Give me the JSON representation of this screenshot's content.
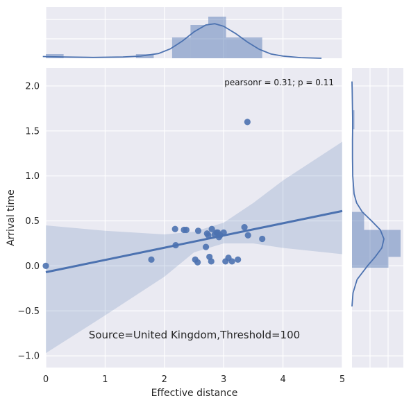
{
  "chart_data": {
    "type": "scatter",
    "xlabel": "Effective distance",
    "ylabel": "Arrival time",
    "xlim": [
      0,
      5
    ],
    "ylim": [
      -1.13,
      2.2
    ],
    "xticks": [
      "0",
      "1",
      "2",
      "3",
      "4",
      "5"
    ],
    "yticks": [
      "−1.0",
      "−0.5",
      "0.0",
      "0.5",
      "1.0",
      "1.5",
      "2.0"
    ],
    "ytick_values": [
      -1.0,
      -0.5,
      0.0,
      0.5,
      1.0,
      1.5,
      2.0
    ],
    "grid": true,
    "annotation": "pearsonr = 0.31; p = 0.11",
    "source_text": "Source=United Kingdom,Threshold=100",
    "colors": {
      "points": "#4c72b0",
      "background": "#eaeaf2",
      "grid": "#ffffff",
      "band": "#4c72b0"
    },
    "points": [
      {
        "x": 0.0,
        "y": 0.0
      },
      {
        "x": 1.78,
        "y": 0.07
      },
      {
        "x": 2.18,
        "y": 0.41
      },
      {
        "x": 2.19,
        "y": 0.23
      },
      {
        "x": 2.33,
        "y": 0.4
      },
      {
        "x": 2.37,
        "y": 0.4
      },
      {
        "x": 2.52,
        "y": 0.07
      },
      {
        "x": 2.56,
        "y": 0.04
      },
      {
        "x": 2.57,
        "y": 0.39
      },
      {
        "x": 2.7,
        "y": 0.21
      },
      {
        "x": 2.72,
        "y": 0.36
      },
      {
        "x": 2.74,
        "y": 0.34
      },
      {
        "x": 2.76,
        "y": 0.1
      },
      {
        "x": 2.79,
        "y": 0.05
      },
      {
        "x": 2.8,
        "y": 0.41
      },
      {
        "x": 2.85,
        "y": 0.35
      },
      {
        "x": 2.88,
        "y": 0.37
      },
      {
        "x": 2.9,
        "y": 0.37
      },
      {
        "x": 2.92,
        "y": 0.32
      },
      {
        "x": 2.94,
        "y": 0.34
      },
      {
        "x": 3.0,
        "y": 0.37
      },
      {
        "x": 3.03,
        "y": 0.05
      },
      {
        "x": 3.08,
        "y": 0.09
      },
      {
        "x": 3.14,
        "y": 0.05
      },
      {
        "x": 3.24,
        "y": 0.07
      },
      {
        "x": 3.35,
        "y": 0.43
      },
      {
        "x": 3.4,
        "y": 1.6
      },
      {
        "x": 3.41,
        "y": 0.34
      },
      {
        "x": 3.65,
        "y": 0.3
      }
    ],
    "regression": {
      "x": [
        0,
        5
      ],
      "y": [
        -0.07,
        0.61
      ]
    },
    "confidence_band": {
      "x": [
        0.0,
        1.0,
        2.0,
        2.5,
        3.0,
        3.5,
        4.0,
        5.0
      ],
      "upper": [
        0.45,
        0.39,
        0.35,
        0.38,
        0.48,
        0.7,
        0.95,
        1.38
      ],
      "lower": [
        -0.97,
        -0.55,
        -0.12,
        0.15,
        0.25,
        0.25,
        0.2,
        0.13
      ]
    },
    "marginal_x": {
      "bins": [
        [
          0.0,
          0.3
        ],
        [
          1.52,
          1.82
        ],
        [
          2.13,
          2.44
        ],
        [
          2.44,
          2.74
        ],
        [
          2.74,
          3.04
        ],
        [
          3.04,
          3.65
        ]
      ],
      "heights": [
        0.1,
        0.1,
        0.5,
        0.8,
        1.0,
        0.5
      ],
      "kde": {
        "x": [
          -0.05,
          0.3,
          0.8,
          1.3,
          1.6,
          1.9,
          2.1,
          2.3,
          2.5,
          2.7,
          2.85,
          3.0,
          3.2,
          3.4,
          3.6,
          3.8,
          4.0,
          4.3,
          4.65
        ],
        "d": [
          0.04,
          0.03,
          0.02,
          0.03,
          0.05,
          0.11,
          0.22,
          0.4,
          0.62,
          0.78,
          0.81,
          0.75,
          0.58,
          0.38,
          0.21,
          0.1,
          0.05,
          0.015,
          0.0
        ]
      }
    },
    "marginal_y": {
      "bins": [
        [
          -0.02,
          0.1
        ],
        [
          0.1,
          0.4
        ],
        [
          0.4,
          0.6
        ],
        [
          1.52,
          1.73
        ]
      ],
      "heights": [
        0.75,
        1.0,
        0.25,
        0.05
      ],
      "kde": {
        "y": [
          -0.45,
          -0.3,
          -0.15,
          0.0,
          0.1,
          0.2,
          0.3,
          0.4,
          0.5,
          0.6,
          0.7,
          0.8,
          1.0,
          1.2,
          1.4,
          1.5,
          1.6,
          1.75,
          1.95,
          2.05
        ],
        "d": [
          0.0,
          0.02,
          0.1,
          0.3,
          0.45,
          0.58,
          0.62,
          0.55,
          0.38,
          0.2,
          0.09,
          0.04,
          0.015,
          0.01,
          0.01,
          0.012,
          0.014,
          0.01,
          0.004,
          0.0
        ]
      }
    }
  }
}
